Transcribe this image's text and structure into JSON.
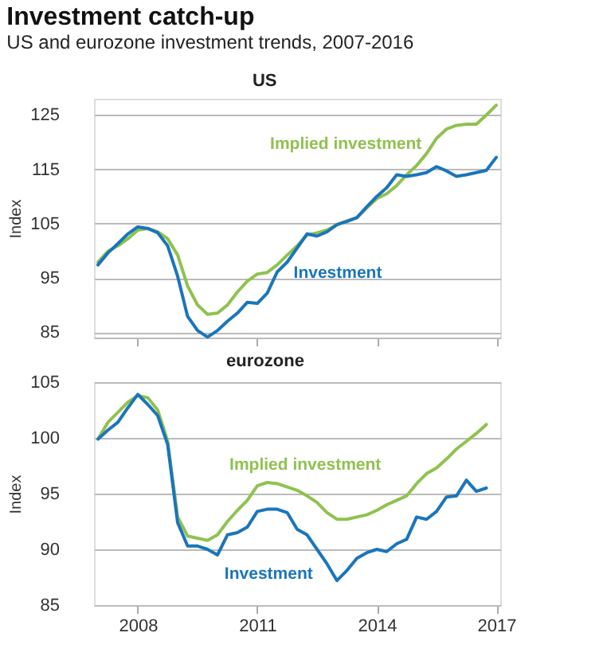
{
  "chart_data": [
    {
      "type": "line",
      "title": "Investment catch-up",
      "subtitle": "US and eurozone investment trends, 2007-2016",
      "annotations": [
        "US"
      ],
      "ylabel": "Index",
      "x": [
        2007.0,
        2007.25,
        2007.5,
        2007.75,
        2008.0,
        2008.25,
        2008.5,
        2008.75,
        2009.0,
        2009.25,
        2009.5,
        2009.75,
        2010.0,
        2010.25,
        2010.5,
        2010.75,
        2011.0,
        2011.25,
        2011.5,
        2011.75,
        2012.0,
        2012.25,
        2012.5,
        2012.75,
        2013.0,
        2013.25,
        2013.5,
        2013.75,
        2014.0,
        2014.25,
        2014.5,
        2014.75,
        2015.0,
        2015.25,
        2015.5,
        2015.75,
        2016.0,
        2016.25,
        2016.5,
        2016.75,
        2017.0
      ],
      "series": [
        {
          "name": "Implied investment",
          "color": "#8fc24f",
          "values": [
            97.9,
            99.9,
            100.9,
            102.2,
            103.8,
            104.1,
            103.5,
            102.2,
            99.2,
            93.5,
            90.0,
            88.3,
            88.5,
            90.0,
            92.4,
            94.4,
            95.7,
            96.0,
            97.4,
            99.2,
            100.9,
            102.9,
            103.3,
            103.8,
            104.8,
            105.5,
            106.1,
            107.9,
            109.6,
            110.5,
            112.0,
            114.0,
            115.7,
            117.9,
            120.7,
            122.4,
            123.1,
            123.3,
            123.3,
            125.0,
            126.8
          ]
        },
        {
          "name": "Investment",
          "color": "#1b75bb",
          "values": [
            97.4,
            99.6,
            101.3,
            103.1,
            104.4,
            104.1,
            103.3,
            100.9,
            95.3,
            87.9,
            85.3,
            84.1,
            85.3,
            87.0,
            88.5,
            90.5,
            90.3,
            92.2,
            96.1,
            97.9,
            100.5,
            103.1,
            102.7,
            103.5,
            104.8,
            105.4,
            106.1,
            108.1,
            110.0,
            111.6,
            114.0,
            113.7,
            114.0,
            114.4,
            115.5,
            114.7,
            113.7,
            114.0,
            114.4,
            114.8,
            117.2
          ]
        }
      ],
      "xlim": [
        2006.9,
        2017.1
      ],
      "xticks": [
        2008,
        2011,
        2014,
        2017
      ],
      "ylim": [
        84,
        128
      ],
      "yticks": [
        85,
        95,
        105,
        115,
        125
      ],
      "grid": "y",
      "legend": false,
      "tick_labels": "y"
    },
    {
      "type": "line",
      "title": "eurozone",
      "ylabel": "Index",
      "x": [
        2007.0,
        2007.25,
        2007.5,
        2007.75,
        2008.0,
        2008.25,
        2008.5,
        2008.75,
        2009.0,
        2009.25,
        2009.5,
        2009.75,
        2010.0,
        2010.25,
        2010.5,
        2010.75,
        2011.0,
        2011.25,
        2011.5,
        2011.75,
        2012.0,
        2012.25,
        2012.5,
        2012.75,
        2013.0,
        2013.25,
        2013.5,
        2013.75,
        2014.0,
        2014.25,
        2014.5,
        2014.75,
        2015.0,
        2015.25,
        2015.5,
        2015.75,
        2016.0,
        2016.25,
        2016.5,
        2016.75
      ],
      "series": [
        {
          "name": "Implied investment",
          "color": "#8fc24f",
          "values": [
            99.9,
            101.4,
            102.3,
            103.2,
            103.8,
            103.6,
            102.5,
            99.7,
            92.9,
            91.2,
            91.0,
            90.8,
            91.3,
            92.5,
            93.5,
            94.4,
            95.7,
            96.0,
            95.9,
            95.6,
            95.3,
            94.8,
            94.2,
            93.3,
            92.7,
            92.7,
            92.9,
            93.1,
            93.5,
            94.0,
            94.4,
            94.8,
            95.9,
            96.8,
            97.3,
            98.1,
            99.0,
            99.7,
            100.4,
            101.2
          ]
        },
        {
          "name": "Investment",
          "color": "#1b75bb",
          "values": [
            99.9,
            100.7,
            101.4,
            102.7,
            103.9,
            103.0,
            102.0,
            99.4,
            92.4,
            90.3,
            90.3,
            90.0,
            89.5,
            91.3,
            91.5,
            92.0,
            93.4,
            93.6,
            93.6,
            93.3,
            91.8,
            91.3,
            90.0,
            88.7,
            87.2,
            88.1,
            89.2,
            89.7,
            90.0,
            89.8,
            90.5,
            90.9,
            92.9,
            92.7,
            93.4,
            94.7,
            94.8,
            96.2,
            95.2,
            95.5
          ]
        }
      ],
      "xlim": [
        2006.9,
        2017.1
      ],
      "xticks": [
        2008,
        2011,
        2014,
        2017
      ],
      "ylim": [
        85,
        105
      ],
      "yticks": [
        85,
        90,
        95,
        100,
        105
      ],
      "grid": "y",
      "legend": false
    }
  ]
}
